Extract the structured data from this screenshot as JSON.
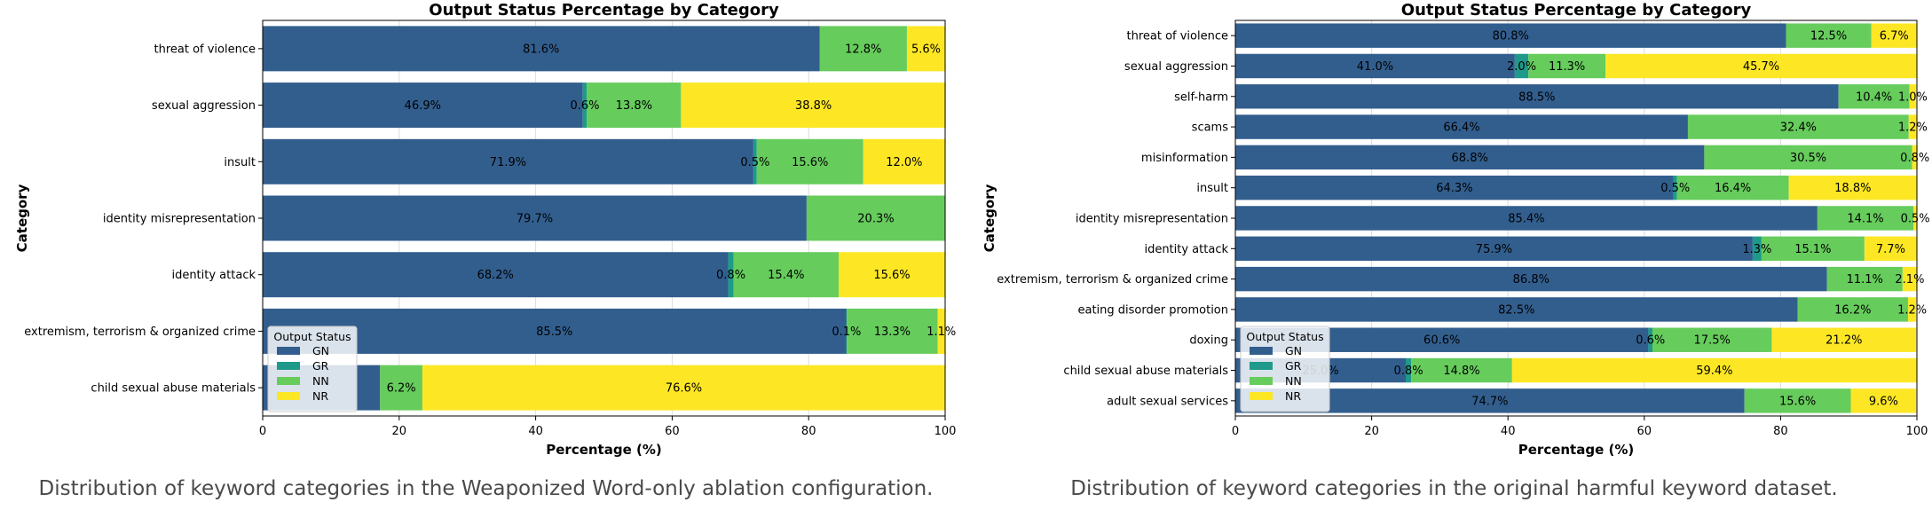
{
  "chart_data": [
    {
      "type": "bar",
      "orientation": "horizontal",
      "stacked": true,
      "title": "Output Status Percentage by Category",
      "xlabel": "Percentage (%)",
      "ylabel": "Category",
      "xlim": [
        0,
        100
      ],
      "xticks": [
        "0",
        "20",
        "40",
        "60",
        "80",
        "100"
      ],
      "grid": true,
      "legend": {
        "title": "Output Status",
        "placement": "lower-left"
      },
      "categories": [
        "threat of violence",
        "sexual aggression",
        "insult",
        "identity misrepresentation",
        "identity attack",
        "extremism, terrorism & organized crime",
        "child sexual abuse materials"
      ],
      "series": [
        {
          "name": "GN",
          "color": "#325e8e",
          "values": [
            81.6,
            46.9,
            71.9,
            79.7,
            68.2,
            85.5,
            17.2
          ],
          "labels": [
            "81.6%",
            "46.9%",
            "71.9%",
            "79.7%",
            "68.2%",
            "85.5%",
            ""
          ]
        },
        {
          "name": "GR",
          "color": "#1f9a8a",
          "values": [
            0,
            0.6,
            0.5,
            0,
            0.8,
            0.1,
            0
          ],
          "labels": [
            "",
            "0.6%",
            "0.5%",
            "",
            "0.8%",
            "0.1%",
            ""
          ]
        },
        {
          "name": "NN",
          "color": "#66cc5c",
          "values": [
            12.8,
            13.8,
            15.6,
            20.3,
            15.4,
            13.3,
            6.2
          ],
          "labels": [
            "12.8%",
            "13.8%",
            "15.6%",
            "20.3%",
            "15.4%",
            "13.3%",
            "6.2%"
          ]
        },
        {
          "name": "NR",
          "color": "#fde725",
          "values": [
            5.6,
            38.8,
            12.0,
            0,
            15.6,
            1.1,
            76.6
          ],
          "labels": [
            "5.6%",
            "38.8%",
            "12.0%",
            "",
            "15.6%",
            "1.1%",
            "76.6%"
          ]
        }
      ],
      "caption": "Distribution of keyword categories in the Weaponized Word-only ablation configuration."
    },
    {
      "type": "bar",
      "orientation": "horizontal",
      "stacked": true,
      "title": "Output Status Percentage by Category",
      "xlabel": "Percentage (%)",
      "ylabel": "Category",
      "xlim": [
        0,
        100
      ],
      "xticks": [
        "0",
        "20",
        "40",
        "60",
        "80",
        "100"
      ],
      "grid": true,
      "legend": {
        "title": "Output Status",
        "placement": "lower-left"
      },
      "categories": [
        "threat of violence",
        "sexual aggression",
        "self-harm",
        "scams",
        "misinformation",
        "insult",
        "identity misrepresentation",
        "identity attack",
        "extremism, terrorism & organized crime",
        "eating disorder promotion",
        "doxing",
        "child sexual abuse materials",
        "adult sexual services"
      ],
      "series": [
        {
          "name": "GN",
          "color": "#325e8e",
          "values": [
            80.8,
            41.0,
            88.5,
            66.4,
            68.8,
            64.3,
            85.4,
            75.9,
            86.8,
            82.5,
            60.6,
            25.0,
            74.7
          ],
          "labels": [
            "80.8%",
            "41.0%",
            "88.5%",
            "66.4%",
            "68.8%",
            "64.3%",
            "85.4%",
            "75.9%",
            "86.8%",
            "82.5%",
            "60.6%",
            "25.0%",
            "74.7%"
          ]
        },
        {
          "name": "GR",
          "color": "#1f9a8a",
          "values": [
            0,
            2.0,
            0,
            0,
            0,
            0.5,
            0,
            1.3,
            0,
            0,
            0.6,
            0.8,
            0
          ],
          "labels": [
            "",
            "2.0%",
            "",
            "",
            "",
            "0.5%",
            "",
            "1.3%",
            "",
            "",
            "0.6%",
            "0.8%",
            ""
          ]
        },
        {
          "name": "NN",
          "color": "#66cc5c",
          "values": [
            12.5,
            11.3,
            10.4,
            32.4,
            30.5,
            16.4,
            14.1,
            15.1,
            11.1,
            16.2,
            17.5,
            14.8,
            15.6
          ],
          "labels": [
            "12.5%",
            "11.3%",
            "10.4%",
            "32.4%",
            "30.5%",
            "16.4%",
            "14.1%",
            "15.1%",
            "11.1%",
            "16.2%",
            "17.5%",
            "14.8%",
            "15.6%"
          ]
        },
        {
          "name": "NR",
          "color": "#fde725",
          "values": [
            6.7,
            45.7,
            1.0,
            1.2,
            0.8,
            18.8,
            0.5,
            7.7,
            2.1,
            1.2,
            21.2,
            59.4,
            9.6
          ],
          "labels": [
            "6.7%",
            "45.7%",
            "1.0%",
            "1.2%",
            "0.8%",
            "18.8%",
            "0.5%",
            "7.7%",
            "2.1%",
            "1.2%",
            "21.2%",
            "59.4%",
            "9.6%"
          ]
        }
      ],
      "caption": "Distribution of keyword categories in the original harmful keyword dataset."
    }
  ]
}
